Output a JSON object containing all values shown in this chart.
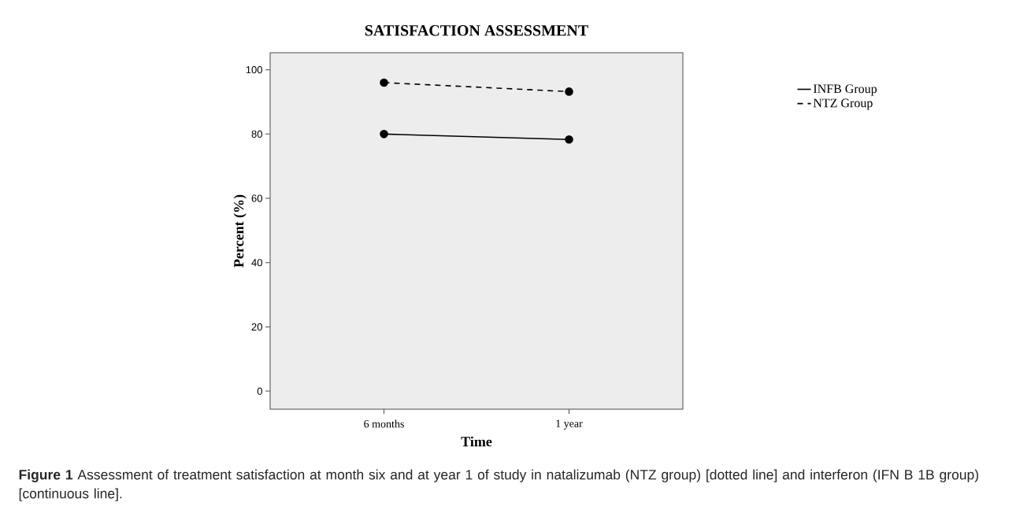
{
  "chart_data": {
    "type": "line",
    "title": "SATISFACTION ASSESSMENT",
    "xlabel": "Time",
    "ylabel": "Percent (%)",
    "categories": [
      "6 months",
      "1 year"
    ],
    "series": [
      {
        "name": "INFB Group",
        "color": "#000000",
        "line_style": "solid",
        "values": [
          80,
          78.3
        ]
      },
      {
        "name": "NTZ Group",
        "color": "#000000",
        "line_style": "dashed",
        "values": [
          96,
          93.2
        ]
      }
    ],
    "ylim": [
      -5.6,
      105.3
    ],
    "yticks": [
      0,
      20,
      40,
      60,
      80,
      100
    ],
    "marker": "circle",
    "legend": "top right",
    "annotations": [
      "**Figure 1** Assessment of treatment satisfaction at month six and at year 1 of study in natalizumab (NTZ group) [dotted line] and interferon (IFN B 1B group) [continuous line]."
    ]
  }
}
